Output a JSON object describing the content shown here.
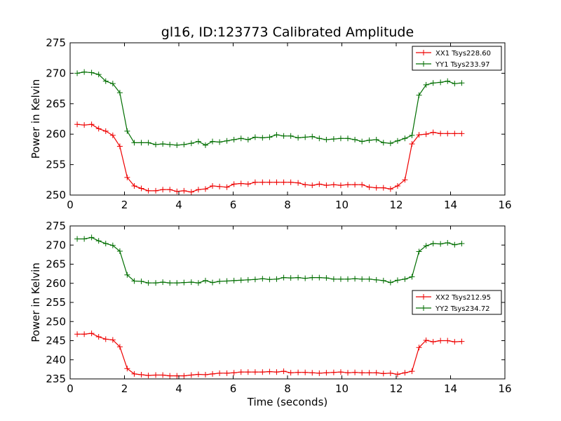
{
  "figure_title": "gl16, ID:123773 Calibrated Amplitude",
  "colors": {
    "red": "#ee0000",
    "green": "#006e00",
    "axis": "#000000"
  },
  "chart_data": [
    {
      "type": "line",
      "title": "gl16, ID:123773 Calibrated Amplitude",
      "xlabel": "",
      "ylabel": "Power in Kelvin",
      "xlim": [
        0,
        16
      ],
      "ylim": [
        250,
        275
      ],
      "xticks": [
        0,
        2,
        4,
        6,
        8,
        10,
        12,
        14,
        16
      ],
      "yticks": [
        250,
        255,
        260,
        265,
        270,
        275
      ],
      "grid": false,
      "legend_position": "top-right",
      "x": [
        0.26,
        0.52,
        0.79,
        1.05,
        1.31,
        1.57,
        1.83,
        2.1,
        2.36,
        2.62,
        2.88,
        3.15,
        3.41,
        3.67,
        3.93,
        4.19,
        4.46,
        4.72,
        4.98,
        5.24,
        5.5,
        5.77,
        6.03,
        6.29,
        6.55,
        6.81,
        7.08,
        7.34,
        7.6,
        7.86,
        8.12,
        8.39,
        8.65,
        8.91,
        9.17,
        9.43,
        9.7,
        9.96,
        10.22,
        10.48,
        10.74,
        11.01,
        11.27,
        11.53,
        11.79,
        12.05,
        12.32,
        12.58,
        12.84,
        13.1,
        13.36,
        13.63,
        13.89,
        14.15,
        14.41
      ],
      "series": [
        {
          "name": "XX1 Tsys228.60",
          "color": "#ee0000",
          "values": [
            261.6,
            261.5,
            261.6,
            260.9,
            260.5,
            259.8,
            258.0,
            252.9,
            251.5,
            251.1,
            250.7,
            250.7,
            250.9,
            250.9,
            250.6,
            250.7,
            250.5,
            250.9,
            251.0,
            251.5,
            251.4,
            251.3,
            251.8,
            251.9,
            251.8,
            252.1,
            252.1,
            252.1,
            252.1,
            252.1,
            252.1,
            252.0,
            251.7,
            251.6,
            251.8,
            251.6,
            251.7,
            251.6,
            251.7,
            251.7,
            251.7,
            251.3,
            251.2,
            251.2,
            251.0,
            251.5,
            252.5,
            258.4,
            259.9,
            260.0,
            260.3,
            260.1,
            260.1,
            260.1,
            260.1
          ]
        },
        {
          "name": "YY1 Tsys233.97",
          "color": "#006e00",
          "values": [
            270.0,
            270.2,
            270.1,
            269.8,
            268.7,
            268.3,
            266.8,
            260.5,
            258.6,
            258.6,
            258.6,
            258.3,
            258.4,
            258.3,
            258.2,
            258.3,
            258.5,
            258.8,
            258.2,
            258.8,
            258.7,
            258.9,
            259.1,
            259.3,
            259.1,
            259.5,
            259.4,
            259.5,
            259.9,
            259.7,
            259.7,
            259.4,
            259.5,
            259.6,
            259.3,
            259.1,
            259.2,
            259.3,
            259.3,
            259.1,
            258.8,
            259.0,
            259.1,
            258.6,
            258.5,
            258.9,
            259.3,
            259.8,
            266.4,
            268.1,
            268.4,
            268.5,
            268.7,
            268.3,
            268.4
          ]
        }
      ]
    },
    {
      "type": "line",
      "title": "",
      "xlabel": "Time (seconds)",
      "ylabel": "Power in Kelvin",
      "xlim": [
        0,
        16
      ],
      "ylim": [
        235,
        275
      ],
      "xticks": [
        0,
        2,
        4,
        6,
        8,
        10,
        12,
        14,
        16
      ],
      "yticks": [
        235,
        240,
        245,
        250,
        255,
        260,
        265,
        270,
        275
      ],
      "grid": false,
      "legend_position": "center-right",
      "x": [
        0.26,
        0.52,
        0.79,
        1.05,
        1.31,
        1.57,
        1.83,
        2.1,
        2.36,
        2.62,
        2.88,
        3.15,
        3.41,
        3.67,
        3.93,
        4.19,
        4.46,
        4.72,
        4.98,
        5.24,
        5.5,
        5.77,
        6.03,
        6.29,
        6.55,
        6.81,
        7.08,
        7.34,
        7.6,
        7.86,
        8.12,
        8.39,
        8.65,
        8.91,
        9.17,
        9.43,
        9.7,
        9.96,
        10.22,
        10.48,
        10.74,
        11.01,
        11.27,
        11.53,
        11.79,
        12.05,
        12.32,
        12.58,
        12.84,
        13.1,
        13.36,
        13.63,
        13.89,
        14.15,
        14.41
      ],
      "series": [
        {
          "name": "XX2 Tsys212.95",
          "color": "#ee0000",
          "values": [
            246.7,
            246.7,
            246.9,
            246.0,
            245.4,
            245.2,
            243.4,
            237.7,
            236.3,
            236.1,
            235.9,
            236.0,
            236.0,
            235.8,
            235.8,
            235.8,
            236.0,
            236.2,
            236.1,
            236.3,
            236.5,
            236.5,
            236.6,
            236.8,
            236.8,
            236.8,
            236.8,
            236.9,
            236.8,
            237.0,
            236.6,
            236.7,
            236.7,
            236.6,
            236.5,
            236.6,
            236.7,
            236.8,
            236.6,
            236.7,
            236.6,
            236.6,
            236.6,
            236.4,
            236.5,
            236.2,
            236.6,
            237.0,
            243.2,
            245.1,
            244.7,
            245.0,
            245.0,
            244.7,
            244.8
          ]
        },
        {
          "name": "YY2 Tsys234.72",
          "color": "#006e00",
          "values": [
            271.6,
            271.6,
            272.0,
            271.1,
            270.4,
            269.9,
            268.4,
            262.2,
            260.6,
            260.5,
            260.1,
            260.1,
            260.3,
            260.1,
            260.1,
            260.2,
            260.3,
            260.1,
            260.7,
            260.2,
            260.5,
            260.6,
            260.7,
            260.8,
            260.9,
            261.0,
            261.2,
            261.0,
            261.1,
            261.5,
            261.4,
            261.5,
            261.3,
            261.5,
            261.5,
            261.4,
            261.1,
            261.1,
            261.1,
            261.2,
            261.1,
            261.1,
            260.9,
            260.7,
            260.2,
            260.8,
            261.1,
            261.7,
            268.3,
            269.8,
            270.4,
            270.3,
            270.6,
            270.1,
            270.4
          ]
        }
      ]
    }
  ]
}
